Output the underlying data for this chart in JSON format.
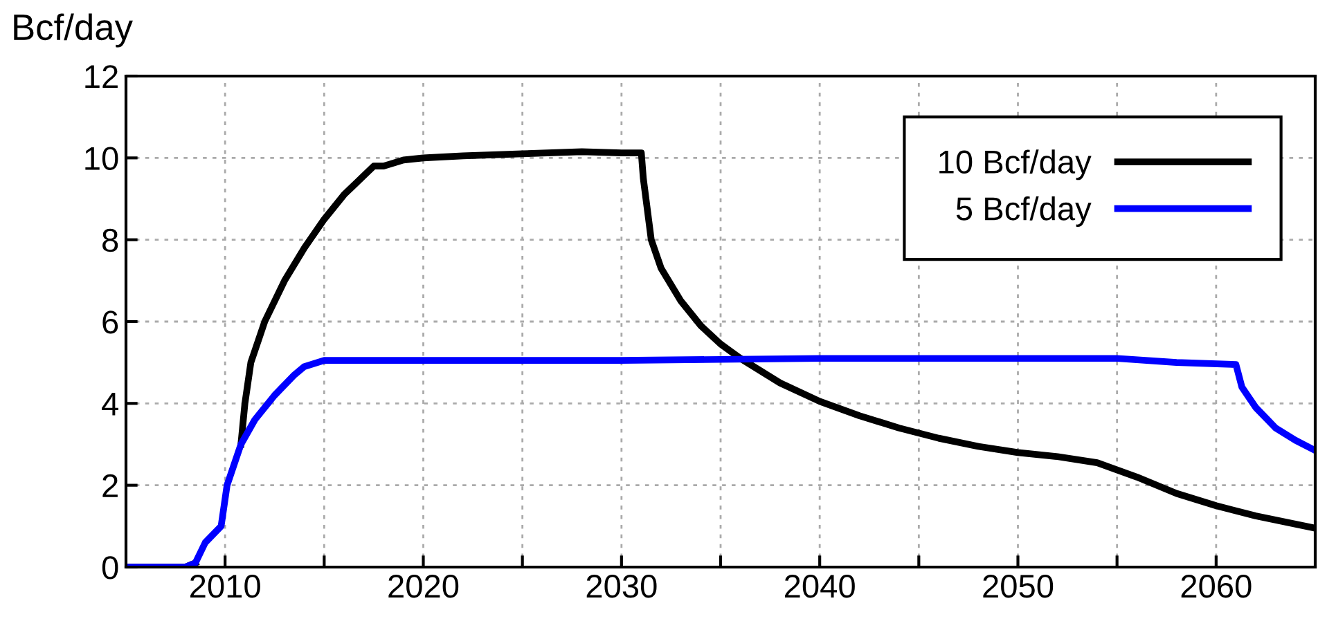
{
  "chart_data": {
    "type": "line",
    "ylabel": "Bcf/day",
    "xlim": [
      2005,
      2065
    ],
    "xticks": [
      2010,
      {
        "value": 2015,
        "label": null
      },
      2020,
      {
        "value": 2025,
        "label": null
      },
      2030,
      {
        "value": 2035,
        "label": null
      },
      2040,
      {
        "value": 2045,
        "label": null
      },
      2050,
      {
        "value": 2055,
        "label": null
      },
      2060
    ],
    "ylim": [
      0,
      12
    ],
    "yticks": [
      0,
      2,
      4,
      6,
      8,
      10,
      12
    ],
    "grid": true,
    "legend": "top right",
    "line_style": "solid",
    "marker": "none",
    "series": [
      {
        "name": "10 Bcf/day",
        "color": "#000000",
        "x": [
          2005,
          2008,
          2008.5,
          2009,
          2009.8,
          2010.1,
          2010.8,
          2011.0,
          2011.3,
          2012,
          2013,
          2014,
          2015,
          2016,
          2017.5,
          2018,
          2019,
          2020,
          2022,
          2025,
          2028,
          2030,
          2031,
          2031.1,
          2031.5,
          2032,
          2033,
          2034,
          2035,
          2036,
          2038,
          2040,
          2042,
          2044,
          2046,
          2048,
          2050,
          2052,
          2054,
          2056,
          2058,
          2060,
          2062,
          2065
        ],
        "values": [
          0,
          0,
          0.1,
          null,
          null,
          null,
          3.0,
          4.0,
          5.0,
          6.0,
          7.0,
          7.8,
          8.5,
          9.1,
          9.8,
          9.8,
          9.95,
          10.0,
          10.05,
          10.1,
          10.15,
          10.12,
          10.12,
          9.5,
          8.0,
          7.3,
          6.5,
          5.9,
          5.45,
          5.1,
          4.5,
          4.05,
          3.7,
          3.4,
          3.15,
          2.95,
          2.8,
          2.7,
          2.55,
          2.2,
          1.8,
          1.5,
          1.25,
          0.95
        ]
      },
      {
        "name": "5 Bcf/day",
        "color": "#0000ff",
        "x": [
          2005,
          2008,
          2008.5,
          2009,
          2009.8,
          2010.1,
          2010.8,
          2011.5,
          2012.5,
          2013.5,
          2014,
          2015,
          2020,
          2030,
          2040,
          2050,
          2055,
          2058,
          2061,
          2061.3,
          2062,
          2063,
          2064,
          2065
        ],
        "values": [
          0,
          0,
          0.1,
          0.6,
          1.0,
          2.0,
          3.0,
          3.6,
          4.2,
          4.7,
          4.9,
          5.05,
          5.05,
          5.05,
          5.1,
          5.1,
          5.1,
          5.0,
          4.95,
          4.4,
          3.9,
          3.4,
          3.1,
          2.85
        ]
      }
    ]
  }
}
